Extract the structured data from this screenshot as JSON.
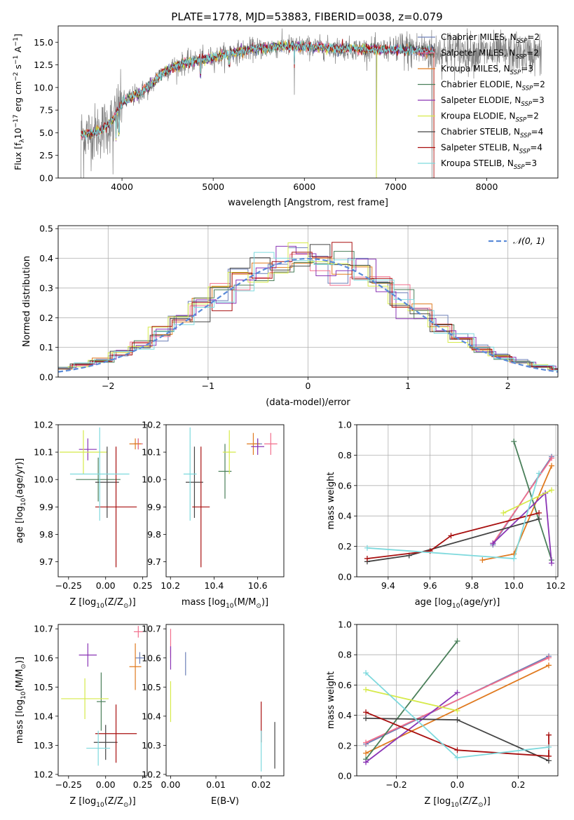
{
  "figure": {
    "title": "PLATE=1778, MJD=53883, FIBERID=0038, z=0.079"
  },
  "colors": {
    "chabrier_miles": "#6c7fb8",
    "salpeter_miles": "#f26f8c",
    "kroupa_miles": "#e07a1f",
    "chabrier_elodie": "#4a7f5a",
    "salpeter_elodie": "#8a35b5",
    "kroupa_elodie": "#d6ea4a",
    "chabrier_stelib": "#444444",
    "salpeter_stelib": "#a80f0f",
    "kroupa_stelib": "#7ed9dd",
    "data": "#7f7f7f",
    "normal": "#5b8bd8"
  },
  "chart_data": [
    {
      "id": "spectrum",
      "type": "line",
      "title": "PLATE=1778, MJD=53883, FIBERID=0038, z=0.079",
      "xlabel": "wavelength [Angstrom, rest frame]",
      "ylabel": "Flux [f",
      "ylabel_sub": "λ",
      "ylabel_rest": "10",
      "ylabel_sup1": "−17",
      "ylabel_rest2": " erg cm",
      "ylabel_sup2": "−2",
      "ylabel_rest3": " s",
      "ylabel_sup3": "−1",
      "ylabel_rest4": " A",
      "ylabel_sup4": "−1",
      "ylabel_end": "]",
      "xlim": [
        3300,
        8780
      ],
      "ylim": [
        0,
        16.8
      ],
      "xticks": [
        4000,
        5000,
        6000,
        7000,
        8000
      ],
      "yticks": [
        0.0,
        2.5,
        5.0,
        7.5,
        10.0,
        12.5,
        15.0
      ],
      "ytick_labels": [
        "0.0",
        "2.5",
        "5.0",
        "7.5",
        "10.0",
        "12.5",
        "15.0"
      ],
      "legend_position": "upper right",
      "legend": [
        {
          "base": "Chabrier MILES, N",
          "sub": "SSP",
          "tail": "=2"
        },
        {
          "base": "Salpeter MILES, N",
          "sub": "SSP",
          "tail": "=2"
        },
        {
          "base": "Kroupa MILES, N",
          "sub": "SSP",
          "tail": "=3"
        },
        {
          "base": "Chabrier ELODIE, N",
          "sub": "SSP",
          "tail": "=2"
        },
        {
          "base": "Salpeter ELODIE, N",
          "sub": "SSP",
          "tail": "=3"
        },
        {
          "base": "Kroupa ELODIE, N",
          "sub": "SSP",
          "tail": "=2"
        },
        {
          "base": "Chabrier STELIB, N",
          "sub": "SSP",
          "tail": "=4"
        },
        {
          "base": "Salpeter STELIB, N",
          "sub": "SSP",
          "tail": "=4"
        },
        {
          "base": "Kroupa STELIB, N",
          "sub": "SSP",
          "tail": "=3"
        }
      ],
      "continuum": {
        "wavelength": [
          3550,
          3700,
          3800,
          3900,
          3950,
          4000,
          4100,
          4200,
          4300,
          4400,
          4500,
          4600,
          4700,
          4800,
          4900,
          5000,
          5200,
          5400,
          5600,
          5800,
          6000,
          6200,
          6400,
          6600,
          6800,
          7000,
          7200,
          7400,
          7600,
          7800,
          8000,
          8200,
          8400,
          8600
        ],
        "flux": [
          4.8,
          5.0,
          5.5,
          6.3,
          7.4,
          8.3,
          8.9,
          9.4,
          10.1,
          11.2,
          12.0,
          12.4,
          12.7,
          12.9,
          13.1,
          13.3,
          13.8,
          14.2,
          14.4,
          14.6,
          14.5,
          14.4,
          14.3,
          14.3,
          14.2,
          14.2,
          14.1,
          14.0,
          14.0,
          13.9,
          13.8,
          13.8,
          13.7,
          13.7
        ]
      },
      "data_x_range": [
        3550,
        8600
      ],
      "model_x_range": [
        3550,
        7420
      ],
      "strong_dips": [
        {
          "wavelength": 3550,
          "flux": 0.0
        },
        {
          "wavelength": 3580,
          "flux": 0.0
        },
        {
          "wavelength": 3900,
          "flux": 0.4
        },
        {
          "wavelength": 5890,
          "flux": 9.2
        },
        {
          "wavelength": 6790,
          "flux": 0.0
        },
        {
          "wavelength": 7400,
          "flux": 0.0
        }
      ]
    },
    {
      "id": "residuals",
      "type": "histogram",
      "xlabel": "(data-model)/error",
      "ylabel": "Normed distribution",
      "xlim": [
        -2.5,
        2.5
      ],
      "ylim": [
        0,
        0.51
      ],
      "xticks": [
        -2,
        -1,
        0,
        1,
        2
      ],
      "xtick_labels": [
        "−2",
        "−1",
        "0",
        "1",
        "2"
      ],
      "yticks": [
        0.0,
        0.1,
        0.2,
        0.3,
        0.4,
        0.5
      ],
      "ytick_labels": [
        "0.0",
        "0.1",
        "0.2",
        "0.3",
        "0.4",
        "0.5"
      ],
      "grid": true,
      "legend_position": "upper right",
      "normal_label": "𝒩(0, 1)",
      "bin_width": 0.2,
      "bin_start": -2.5
    },
    {
      "id": "age_vs_Z",
      "type": "scatter",
      "xlabel": "Z [log",
      "xlabel_sub": "10",
      "xlabel_mid": "(Z/Z",
      "xlabel_sub2": "⊙",
      "xlabel_end": ")]",
      "ylabel": "age  [log",
      "ylabel_sub": "10",
      "ylabel_end": "(age/yr)]",
      "xlim": [
        -0.32,
        0.28
      ],
      "ylim": [
        9.645,
        10.2
      ],
      "xticks": [
        -0.25,
        0.0,
        0.25
      ],
      "xtick_labels": [
        "−0.25",
        "0.00",
        "0.25"
      ],
      "yticks": [
        9.7,
        9.8,
        9.9,
        10.0,
        10.1,
        10.2
      ],
      "ytick_labels": [
        "9.7",
        "9.8",
        "9.9",
        "10.0",
        "10.1",
        "10.2"
      ],
      "points": [
        {
          "model": "chabrier_miles",
          "x": 0.22,
          "xerr": 0.03,
          "y": 10.13,
          "yerr": 0.02
        },
        {
          "model": "salpeter_miles",
          "x": 0.22,
          "xerr": 0.03,
          "y": 10.13,
          "yerr": 0.02
        },
        {
          "model": "kroupa_miles",
          "x": 0.2,
          "xerr": 0.04,
          "y": 10.13,
          "yerr": 0.02
        },
        {
          "model": "chabrier_elodie",
          "x": -0.05,
          "xerr": 0.15,
          "y": 10.0,
          "yerr": 0.08
        },
        {
          "model": "salpeter_elodie",
          "x": -0.12,
          "xerr": 0.06,
          "y": 10.11,
          "yerr": 0.04
        },
        {
          "model": "kroupa_elodie",
          "x": -0.15,
          "xerr": 0.16,
          "y": 10.1,
          "yerr": 0.08
        },
        {
          "model": "chabrier_stelib",
          "x": 0.01,
          "xerr": 0.08,
          "y": 9.99,
          "yerr": 0.13
        },
        {
          "model": "salpeter_stelib",
          "x": 0.07,
          "xerr": 0.14,
          "y": 9.9,
          "yerr": 0.22
        },
        {
          "model": "kroupa_stelib",
          "x": -0.04,
          "xerr": 0.2,
          "y": 10.02,
          "yerr": 0.17
        }
      ]
    },
    {
      "id": "age_vs_mass",
      "type": "scatter",
      "xlabel": "mass [log",
      "xlabel_sub": "10",
      "xlabel_mid": "(M/M",
      "xlabel_sub2": "⊙",
      "xlabel_end": ")]",
      "xlim": [
        10.18,
        10.72
      ],
      "ylim": [
        9.645,
        10.2
      ],
      "xticks": [
        10.2,
        10.4,
        10.6
      ],
      "xtick_labels": [
        "10.2",
        "10.4",
        "10.6"
      ],
      "yticks": [
        9.7,
        9.8,
        9.9,
        10.0,
        10.1,
        10.2
      ],
      "ytick_labels": [
        "9.7",
        "9.8",
        "9.9",
        "10.0",
        "10.1",
        "10.2"
      ],
      "points": [
        {
          "model": "chabrier_miles",
          "x": 10.6,
          "xerr": 0.02,
          "y": 10.13,
          "yerr": 0.02
        },
        {
          "model": "salpeter_miles",
          "x": 10.66,
          "xerr": 0.03,
          "y": 10.13,
          "yerr": 0.04
        },
        {
          "model": "kroupa_miles",
          "x": 10.58,
          "xerr": 0.03,
          "y": 10.13,
          "yerr": 0.04
        },
        {
          "model": "chabrier_elodie",
          "x": 10.45,
          "xerr": 0.03,
          "y": 10.03,
          "yerr": 0.1
        },
        {
          "model": "salpeter_elodie",
          "x": 10.6,
          "xerr": 0.03,
          "y": 10.12,
          "yerr": 0.03
        },
        {
          "model": "kroupa_elodie",
          "x": 10.47,
          "xerr": 0.03,
          "y": 10.1,
          "yerr": 0.08
        },
        {
          "model": "chabrier_stelib",
          "x": 10.31,
          "xerr": 0.04,
          "y": 9.99,
          "yerr": 0.13
        },
        {
          "model": "salpeter_stelib",
          "x": 10.34,
          "xerr": 0.04,
          "y": 9.9,
          "yerr": 0.22
        },
        {
          "model": "kroupa_stelib",
          "x": 10.29,
          "xerr": 0.03,
          "y": 10.02,
          "yerr": 0.17
        }
      ]
    },
    {
      "id": "weight_vs_age",
      "type": "line",
      "xlabel": "age  [log",
      "xlabel_sub": "10",
      "xlabel_end": "(age/yr)]",
      "ylabel": "mass weight",
      "xlim": [
        9.25,
        10.21
      ],
      "ylim": [
        0,
        1.0
      ],
      "xticks": [
        9.4,
        9.6,
        9.8,
        10.0,
        10.2
      ],
      "xtick_labels": [
        "9.4",
        "9.6",
        "9.8",
        "10.0",
        "10.2"
      ],
      "yticks": [
        0.0,
        0.2,
        0.4,
        0.6,
        0.8,
        1.0
      ],
      "ytick_labels": [
        "0.0",
        "0.2",
        "0.4",
        "0.6",
        "0.8",
        "1.0"
      ],
      "grid": true,
      "series": [
        {
          "model": "chabrier_miles",
          "x": [
            9.9,
            10.18
          ],
          "y": [
            0.21,
            0.79
          ]
        },
        {
          "model": "salpeter_miles",
          "x": [
            9.9,
            10.18
          ],
          "y": [
            0.22,
            0.78
          ]
        },
        {
          "model": "kroupa_miles",
          "x": [
            9.85,
            10.0,
            10.18
          ],
          "y": [
            0.11,
            0.15,
            0.73
          ]
        },
        {
          "model": "chabrier_elodie",
          "x": [
            10.0,
            10.18
          ],
          "y": [
            0.89,
            0.11
          ]
        },
        {
          "model": "salpeter_elodie",
          "x": [
            9.9,
            10.15,
            10.18
          ],
          "y": [
            0.22,
            0.55,
            0.09
          ]
        },
        {
          "model": "kroupa_elodie",
          "x": [
            9.95,
            10.18
          ],
          "y": [
            0.42,
            0.57
          ]
        },
        {
          "model": "chabrier_stelib",
          "x": [
            9.3,
            9.5,
            10.12
          ],
          "y": [
            0.1,
            0.14,
            0.38
          ]
        },
        {
          "model": "salpeter_stelib",
          "x": [
            9.3,
            9.6,
            9.7,
            10.12
          ],
          "y": [
            0.12,
            0.17,
            0.27,
            0.42
          ]
        },
        {
          "model": "kroupa_stelib",
          "x": [
            9.3,
            10.0,
            10.12
          ],
          "y": [
            0.19,
            0.12,
            0.68
          ]
        }
      ]
    },
    {
      "id": "mass_vs_Z",
      "type": "scatter",
      "xlabel": "Z [log",
      "xlabel_sub": "10",
      "xlabel_mid": "(Z/Z",
      "xlabel_sub2": "⊙",
      "xlabel_end": ")]",
      "ylabel": "mass [log",
      "ylabel_sub": "10",
      "ylabel_end": "(M/M",
      "ylabel_sub2": "⊙",
      "ylabel_end2": ")]",
      "xlim": [
        -0.32,
        0.28
      ],
      "ylim": [
        10.195,
        10.715
      ],
      "xticks": [
        -0.25,
        0.0,
        0.25
      ],
      "xtick_labels": [
        "−0.25",
        "0.00",
        "0.25"
      ],
      "yticks": [
        10.2,
        10.3,
        10.4,
        10.5,
        10.6,
        10.7
      ],
      "ytick_labels": [
        "10.2",
        "10.3",
        "10.4",
        "10.5",
        "10.6",
        "10.7"
      ],
      "points": [
        {
          "model": "chabrier_miles",
          "x": 0.23,
          "xerr": 0.03,
          "y": 10.6,
          "yerr": 0.02
        },
        {
          "model": "salpeter_miles",
          "x": 0.22,
          "xerr": 0.03,
          "y": 10.69,
          "yerr": 0.02
        },
        {
          "model": "kroupa_miles",
          "x": 0.2,
          "xerr": 0.04,
          "y": 10.57,
          "yerr": 0.08
        },
        {
          "model": "chabrier_elodie",
          "x": -0.03,
          "xerr": 0.03,
          "y": 10.45,
          "yerr": 0.1
        },
        {
          "model": "salpeter_elodie",
          "x": -0.12,
          "xerr": 0.06,
          "y": 10.61,
          "yerr": 0.04
        },
        {
          "model": "kroupa_elodie",
          "x": -0.14,
          "xerr": 0.16,
          "y": 10.46,
          "yerr": 0.07
        },
        {
          "model": "chabrier_stelib",
          "x": 0.0,
          "xerr": 0.08,
          "y": 10.31,
          "yerr": 0.06
        },
        {
          "model": "salpeter_stelib",
          "x": 0.07,
          "xerr": 0.14,
          "y": 10.34,
          "yerr": 0.1
        },
        {
          "model": "kroupa_stelib",
          "x": -0.05,
          "xerr": 0.08,
          "y": 10.29,
          "yerr": 0.06
        }
      ]
    },
    {
      "id": "mass_vs_ebv",
      "type": "scatter",
      "xlabel": "E(B-V)",
      "xlim": [
        -0.001,
        0.025
      ],
      "ylim": [
        10.195,
        10.715
      ],
      "xticks": [
        0.0,
        0.01,
        0.02
      ],
      "xtick_labels": [
        "0.00",
        "0.01",
        "0.02"
      ],
      "yticks": [
        10.2,
        10.3,
        10.4,
        10.5,
        10.6,
        10.7
      ],
      "ytick_labels": [
        "10.2",
        "10.3",
        "10.4",
        "10.5",
        "10.6",
        "10.7"
      ],
      "points": [
        {
          "model": "salpeter_miles",
          "x": 0.0,
          "y": 10.65,
          "yerr": 0.05
        },
        {
          "model": "salpeter_elodie",
          "x": 0.0,
          "y": 10.6,
          "yerr": 0.04
        },
        {
          "model": "kroupa_elodie",
          "x": 0.0,
          "y": 10.45,
          "yerr": 0.07
        },
        {
          "model": "chabrier_miles",
          "x": 0.0033,
          "y": 10.58,
          "yerr": 0.04
        },
        {
          "model": "salpeter_stelib",
          "x": 0.02,
          "y": 10.38,
          "yerr": 0.07
        },
        {
          "model": "kroupa_stelib",
          "x": 0.02,
          "y": 10.28,
          "yerr": 0.07
        },
        {
          "model": "chabrier_stelib",
          "x": 0.023,
          "y": 10.3,
          "yerr": 0.08
        }
      ]
    },
    {
      "id": "weight_vs_Z",
      "type": "line",
      "xlabel": "Z [log",
      "xlabel_sub": "10",
      "xlabel_mid": "(Z/Z",
      "xlabel_sub2": "⊙",
      "xlabel_end": ")]",
      "ylabel": "mass weight",
      "xlim": [
        -0.33,
        0.33
      ],
      "ylim": [
        0,
        1.0
      ],
      "xticks": [
        -0.2,
        0.0,
        0.2
      ],
      "xtick_labels": [
        "−0.2",
        "0.0",
        "0.2"
      ],
      "yticks": [
        0.0,
        0.2,
        0.4,
        0.6,
        0.8,
        1.0
      ],
      "ytick_labels": [
        "0.0",
        "0.2",
        "0.4",
        "0.6",
        "0.8",
        "1.0"
      ],
      "grid": true,
      "series": [
        {
          "model": "chabrier_miles",
          "x": [
            -0.3,
            0.3
          ],
          "y": [
            0.21,
            0.79
          ]
        },
        {
          "model": "salpeter_miles",
          "x": [
            -0.3,
            0.3
          ],
          "y": [
            0.22,
            0.78
          ]
        },
        {
          "model": "kroupa_miles",
          "x": [
            -0.3,
            0.3
          ],
          "y": [
            0.15,
            0.73
          ]
        },
        {
          "model": "chabrier_elodie",
          "x": [
            -0.3,
            0.0
          ],
          "y": [
            0.11,
            0.89
          ]
        },
        {
          "model": "salpeter_elodie",
          "x": [
            -0.3,
            0.0
          ],
          "y": [
            0.09,
            0.55
          ]
        },
        {
          "model": "kroupa_elodie",
          "x": [
            -0.3,
            0.0
          ],
          "y": [
            0.57,
            0.43
          ]
        },
        {
          "model": "chabrier_stelib",
          "x": [
            -0.3,
            0.0,
            0.3
          ],
          "y": [
            0.38,
            0.37,
            0.1
          ]
        },
        {
          "model": "salpeter_stelib",
          "x": [
            -0.3,
            0.0,
            0.3,
            0.3
          ],
          "y": [
            0.42,
            0.17,
            0.13,
            0.27
          ]
        },
        {
          "model": "kroupa_stelib",
          "x": [
            -0.3,
            0.0,
            0.3
          ],
          "y": [
            0.68,
            0.12,
            0.19
          ]
        }
      ]
    }
  ]
}
